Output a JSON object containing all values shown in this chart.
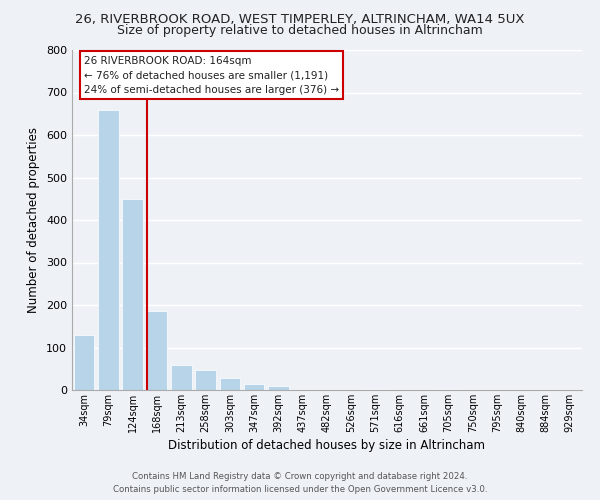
{
  "title": "26, RIVERBROOK ROAD, WEST TIMPERLEY, ALTRINCHAM, WA14 5UX",
  "subtitle": "Size of property relative to detached houses in Altrincham",
  "xlabel": "Distribution of detached houses by size in Altrincham",
  "ylabel": "Number of detached properties",
  "bar_color": "#b8d4e8",
  "bar_edge_color": "#ffffff",
  "categories": [
    "34sqm",
    "79sqm",
    "124sqm",
    "168sqm",
    "213sqm",
    "258sqm",
    "303sqm",
    "347sqm",
    "392sqm",
    "437sqm",
    "482sqm",
    "526sqm",
    "571sqm",
    "616sqm",
    "661sqm",
    "705sqm",
    "750sqm",
    "795sqm",
    "840sqm",
    "884sqm",
    "929sqm"
  ],
  "values": [
    130,
    660,
    450,
    185,
    60,
    48,
    28,
    15,
    10,
    0,
    0,
    0,
    2,
    0,
    0,
    2,
    0,
    0,
    0,
    0,
    0
  ],
  "property_line_color": "#cc0000",
  "annotation_title": "26 RIVERBROOK ROAD: 164sqm",
  "annotation_line1": "← 76% of detached houses are smaller (1,191)",
  "annotation_line2": "24% of semi-detached houses are larger (376) →",
  "annotation_box_color": "#ffffff",
  "annotation_box_edge": "#cc0000",
  "ylim": [
    0,
    800
  ],
  "yticks": [
    0,
    100,
    200,
    300,
    400,
    500,
    600,
    700,
    800
  ],
  "footer_line1": "Contains HM Land Registry data © Crown copyright and database right 2024.",
  "footer_line2": "Contains public sector information licensed under the Open Government Licence v3.0.",
  "background_color": "#eef2f7",
  "grid_color": "#ffffff",
  "title_fontsize": 9.5,
  "subtitle_fontsize": 9
}
